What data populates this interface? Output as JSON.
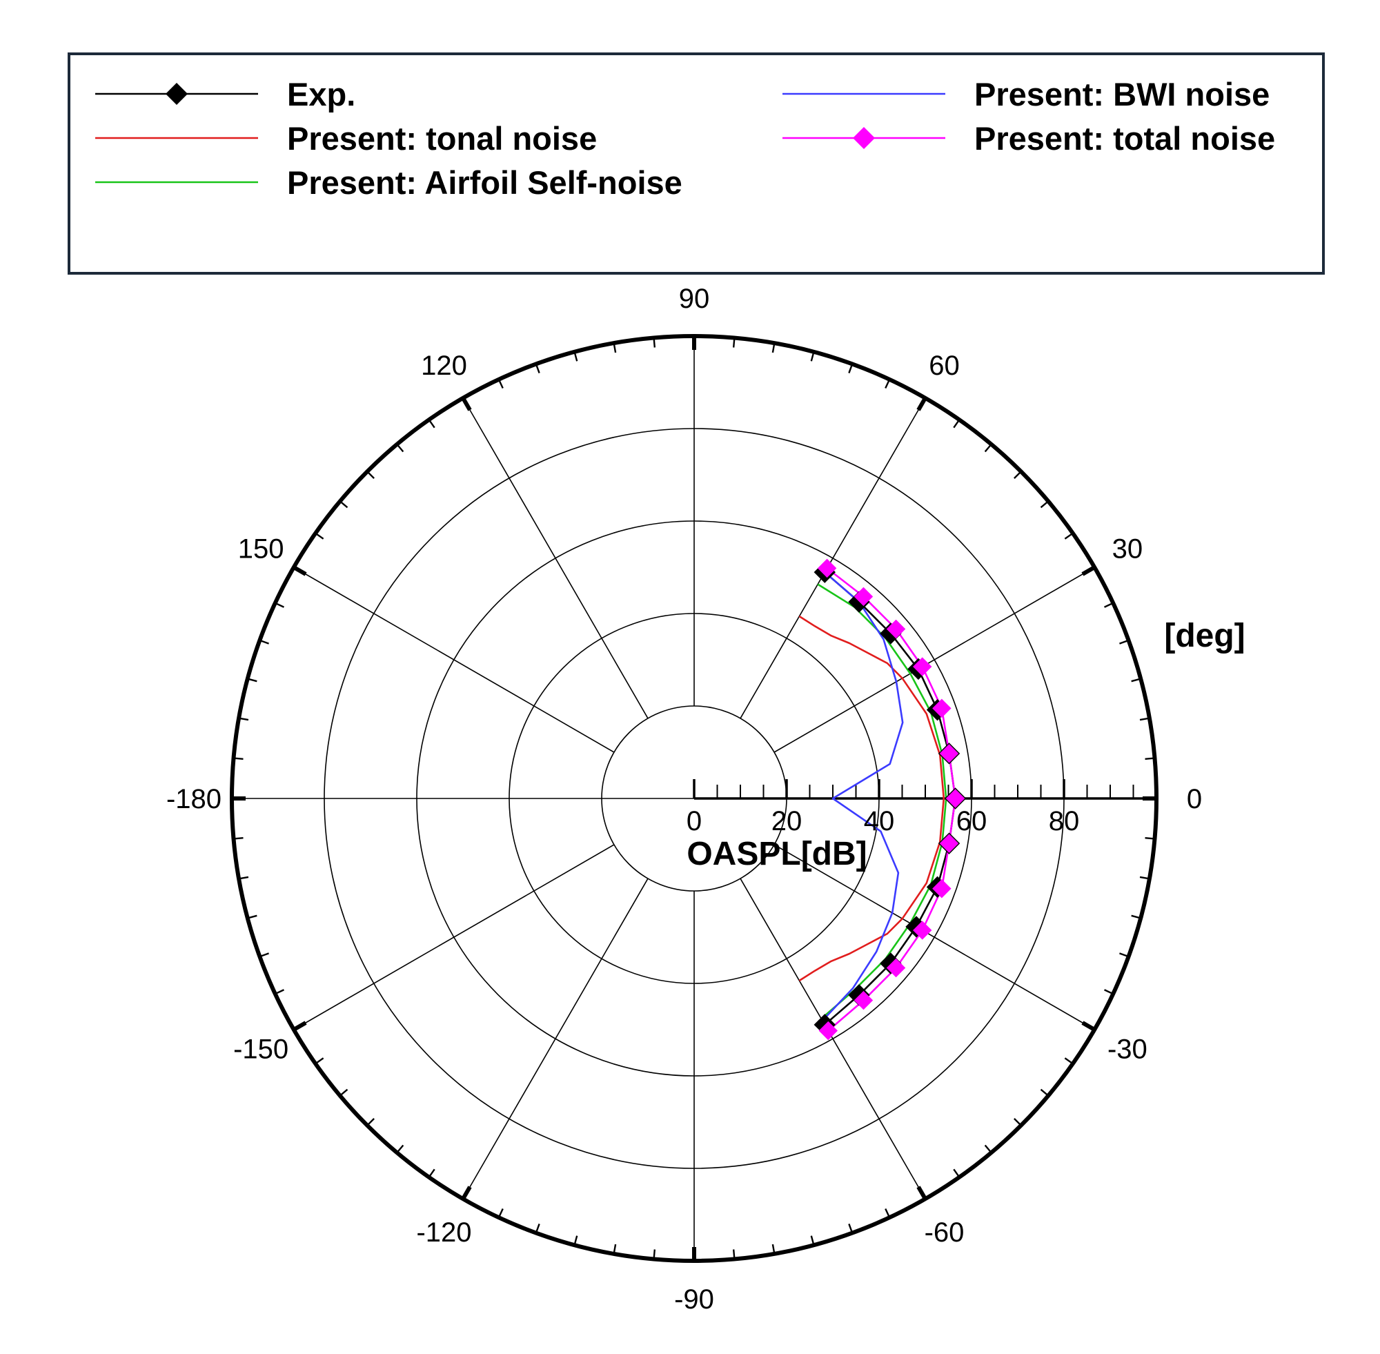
{
  "legend": {
    "items": [
      {
        "label": "Exp.",
        "color": "#000000",
        "marker": "diamond",
        "marker_color": "#000000"
      },
      {
        "label": "Present: tonal noise",
        "color": "#e11d1d",
        "marker": "none"
      },
      {
        "label": "Present: Airfoil Self-noise",
        "color": "#18c418",
        "marker": "none"
      },
      {
        "label": "Present: BWI noise",
        "color": "#3b3bff",
        "marker": "none"
      },
      {
        "label": "Present: total noise",
        "color": "#ff00ff",
        "marker": "diamond",
        "marker_color": "#ff00ff"
      }
    ]
  },
  "chart_data": {
    "type": "polar-line",
    "theta_unit_label": "[deg]",
    "radial_axis_title": "OASPL[dB]",
    "theta_ticks": [
      90,
      60,
      30,
      0,
      -30,
      -60,
      -90,
      -120,
      -150,
      -180,
      150,
      120
    ],
    "radial_ticks": [
      0,
      20,
      40,
      60,
      80
    ],
    "radial_range": [
      0,
      100
    ],
    "grid_radii": [
      20,
      40,
      60,
      80,
      100
    ],
    "theta_gridlines_deg": [
      0,
      30,
      60,
      90,
      120,
      150,
      180,
      210,
      240,
      270,
      300,
      330
    ],
    "series": [
      {
        "name": "Exp.",
        "color": "#000000",
        "marker": "diamond",
        "theta": [
          -60,
          -50,
          -40,
          -30,
          -20,
          -10,
          0,
          10,
          20,
          30,
          40,
          50,
          60
        ],
        "r": [
          56.5,
          55.5,
          55.5,
          55.5,
          56.0,
          56.0,
          56.5,
          56.0,
          56.0,
          56.0,
          55.5,
          55.5,
          56.5
        ]
      },
      {
        "name": "Present: tonal noise",
        "color": "#e11d1d",
        "marker": "none",
        "theta": [
          -60,
          -55,
          -50,
          -45,
          -40,
          -35,
          -30,
          -20,
          -10,
          0,
          10,
          20,
          30,
          35,
          40,
          45,
          50,
          55,
          60
        ],
        "r": [
          45.5,
          45.5,
          46.0,
          47.5,
          49.0,
          51.0,
          52.0,
          53.5,
          54.0,
          54.0,
          54.0,
          53.5,
          52.0,
          51.0,
          49.0,
          47.5,
          46.0,
          45.5,
          45.5
        ]
      },
      {
        "name": "Present: Airfoil Self-noise",
        "color": "#18c418",
        "marker": "none",
        "theta": [
          -60,
          -50,
          -40,
          -30,
          -20,
          -10,
          0,
          10,
          20,
          30,
          40,
          50,
          60
        ],
        "r": [
          55.0,
          54.0,
          54.0,
          54.0,
          54.5,
          54.5,
          54.5,
          54.5,
          54.5,
          54.0,
          54.0,
          54.0,
          53.5
        ]
      },
      {
        "name": "Present: BWI noise",
        "color": "#3b3bff",
        "marker": "none",
        "theta": [
          -60,
          -50,
          -40,
          -30,
          -20,
          -10,
          0,
          10,
          20,
          30,
          40,
          50,
          60
        ],
        "r": [
          55.5,
          53.5,
          51.5,
          49.5,
          47.0,
          41.0,
          30.0,
          43.0,
          48.0,
          50.5,
          53.5,
          55.5,
          56.5
        ]
      },
      {
        "name": "Present: total noise",
        "color": "#ff00ff",
        "marker": "diamond",
        "theta": [
          -60,
          -50,
          -40,
          -30,
          -20,
          -10,
          0,
          10,
          20,
          30,
          40,
          50,
          60
        ],
        "r": [
          58.0,
          57.0,
          57.0,
          57.0,
          57.0,
          56.0,
          56.5,
          56.0,
          57.0,
          57.0,
          57.0,
          57.0,
          57.5
        ]
      }
    ]
  }
}
